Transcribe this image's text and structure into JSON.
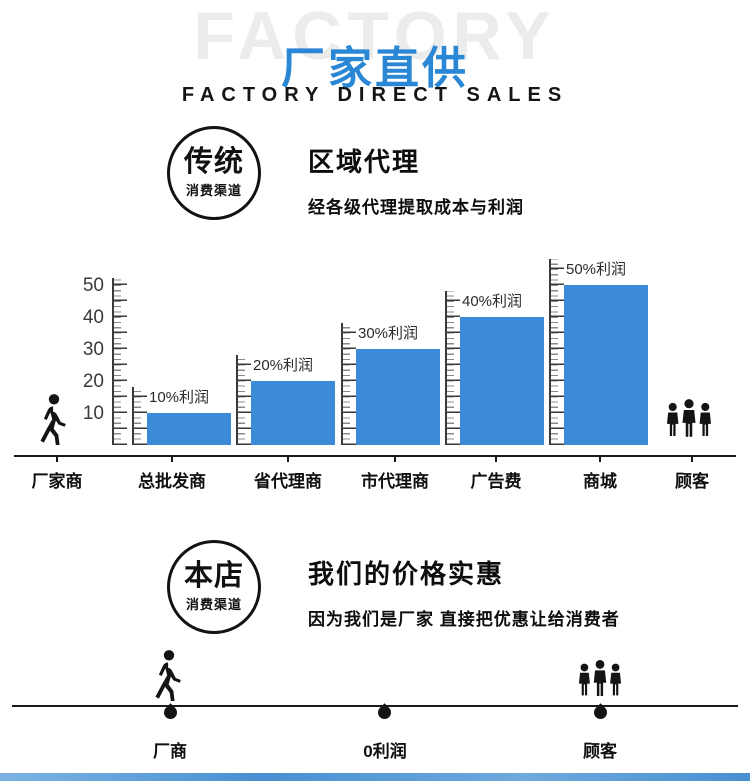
{
  "accent_color": "#2a87d5",
  "header": {
    "watermark": "FACTORY",
    "title": "厂家直供",
    "subtitle": "FACTORY DIRECT SALES"
  },
  "traditional": {
    "badge_title": "传统",
    "badge_subtitle": "消费渠道",
    "heading": "区域代理",
    "subheading": "经各级代理提取成本与利润"
  },
  "chart_data": {
    "type": "bar",
    "categories": [
      "厂家商",
      "总批发商",
      "省代理商",
      "市代理商",
      "广告费",
      "商城",
      "顾客"
    ],
    "bars": [
      {
        "category": "总批发商",
        "value": 10,
        "label": "10%利润"
      },
      {
        "category": "省代理商",
        "value": 20,
        "label": "20%利润"
      },
      {
        "category": "市代理商",
        "value": 30,
        "label": "30%利润"
      },
      {
        "category": "广告费",
        "value": 40,
        "label": "40%利润"
      },
      {
        "category": "商城",
        "value": 50,
        "label": "50%利润"
      }
    ],
    "yticks": [
      10,
      20,
      30,
      40,
      50
    ],
    "ylim": [
      0,
      50
    ],
    "xlabel": "",
    "ylabel": "",
    "grid": false,
    "legend": false,
    "bar_color": "#3b8bd8",
    "endpoint_icons": {
      "left": "walking-person-icon",
      "right": "people-group-icon"
    }
  },
  "shop": {
    "badge_title": "本店",
    "badge_subtitle": "消费渠道",
    "heading": "我们的价格实惠",
    "subheading": "因为我们是厂家  直接把优惠让给消费者"
  },
  "flow": {
    "items": [
      {
        "label": "厂商",
        "icon": "walking-person-icon"
      },
      {
        "label": "0利润",
        "icon": "pin-marker-icon"
      },
      {
        "label": "顾客",
        "icon": "people-group-icon"
      }
    ]
  },
  "icons": {
    "walking_person": "walking-person-icon",
    "people_group": "people-group-icon",
    "pin_marker": "pin-marker-icon"
  }
}
